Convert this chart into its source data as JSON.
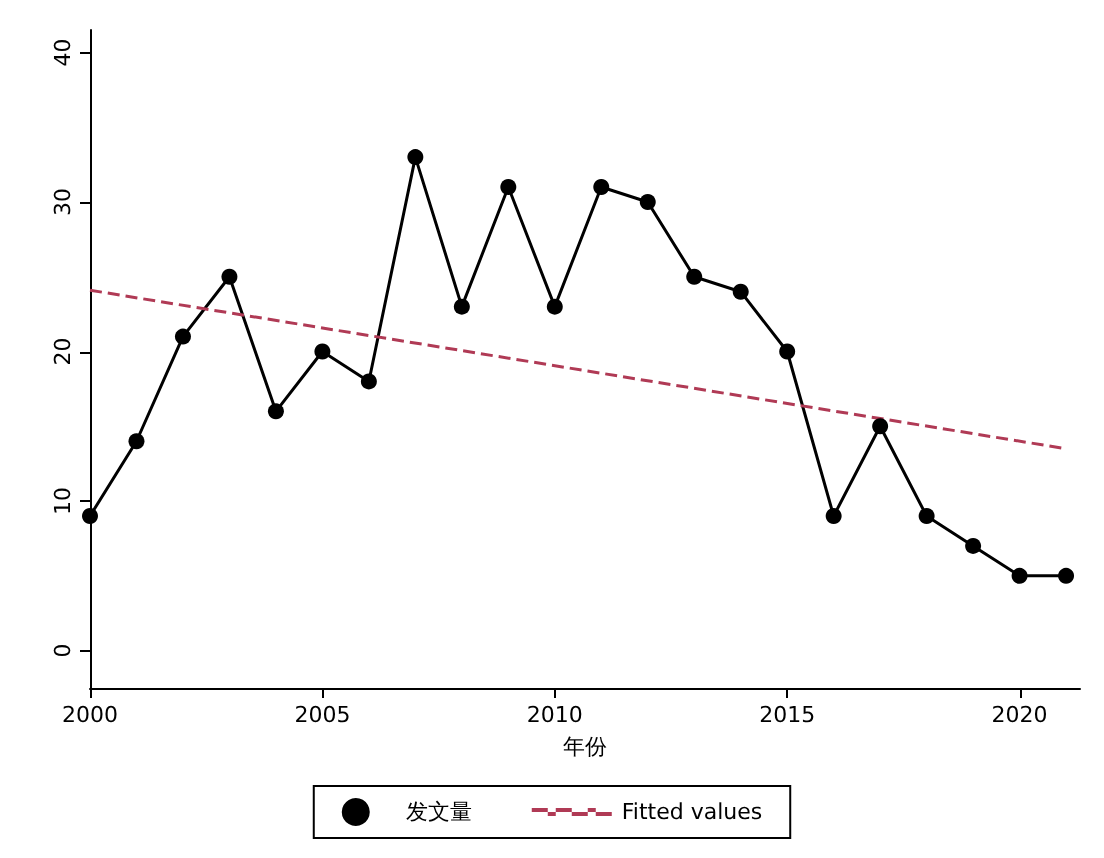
{
  "chart_data": {
    "type": "line",
    "xlabel": "年份",
    "x": [
      2000,
      2001,
      2002,
      2003,
      2004,
      2005,
      2006,
      2007,
      2008,
      2009,
      2010,
      2011,
      2012,
      2013,
      2014,
      2015,
      2016,
      2017,
      2018,
      2019,
      2020,
      2021
    ],
    "series": [
      {
        "name": "发文量",
        "color": "#000000",
        "marker": "circle",
        "line_style": "solid",
        "values": [
          9,
          14,
          21,
          25,
          16,
          20,
          18,
          33,
          23,
          31,
          23,
          31,
          30,
          25,
          24,
          20,
          9,
          15,
          9,
          7,
          5,
          5
        ]
      },
      {
        "name": "Fitted values",
        "color": "#b03a55",
        "marker": "none",
        "line_style": "dashed",
        "x": [
          2000,
          2021
        ],
        "values": [
          24.1,
          13.5
        ]
      }
    ],
    "xlim": [
      2000,
      2021.3
    ],
    "xticks": [
      2000,
      2005,
      2010,
      2015,
      2020
    ],
    "ylim": [
      -2.5,
      41.5
    ],
    "yticks": [
      0,
      10,
      20,
      30,
      40
    ],
    "grid": false,
    "legend": "bottom"
  }
}
